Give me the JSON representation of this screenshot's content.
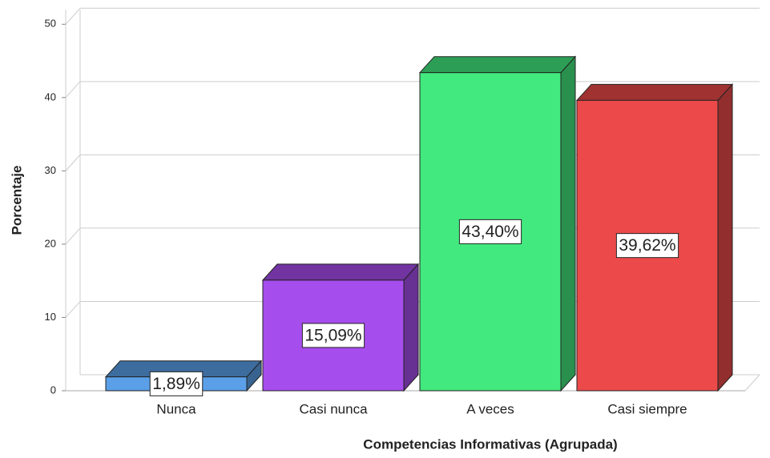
{
  "chart_data": {
    "type": "bar3d",
    "x_label": "Competencias Informativas (Agrupada)",
    "y_label": "Porcentaje",
    "categories": [
      "Nunca",
      "Casi nunca",
      "A veces",
      "Casi siempre"
    ],
    "values": [
      1.89,
      15.09,
      43.4,
      39.62
    ],
    "value_labels": [
      "1,89%",
      "15,09%",
      "43,40%",
      "39,62%"
    ],
    "colors": [
      "#5a9fe8",
      "#a64ded",
      "#42e97e",
      "#ec4a4a"
    ],
    "ylim": [
      0,
      52
    ],
    "yticks": [
      0,
      10,
      20,
      30,
      40,
      50
    ],
    "grid": true
  }
}
